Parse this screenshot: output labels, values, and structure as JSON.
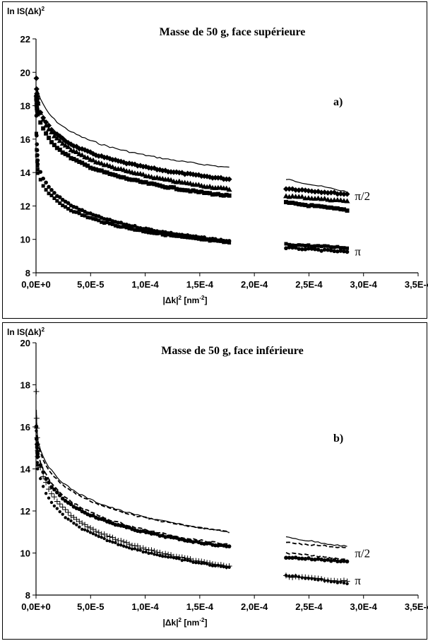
{
  "chart_data": [
    {
      "type": "scatter",
      "title": "Masse de 50 g, face supérieure",
      "panel_label": "a)",
      "ylabel_main": "ln IS(Δk)",
      "ylabel_sup": "2",
      "xlabel_main": "|Δk|",
      "xlabel_sup": "2",
      "xlabel_unit": " [nm",
      "xlabel_unit_sup": "-2",
      "xlabel_close": "]",
      "xlim": [
        0,
        0.00035
      ],
      "ylim": [
        8,
        22
      ],
      "x_ticks": [
        0,
        5e-05,
        0.0001,
        0.00015,
        0.0002,
        0.00025,
        0.0003,
        0.00035
      ],
      "x_tick_labels": [
        "0,0E+0",
        "5,0E-5",
        "1,0E-4",
        "1,5E-4",
        "2,0E-4",
        "2,5E-4",
        "3,0E-4",
        "3,5E-4"
      ],
      "y_ticks": [
        8,
        10,
        12,
        14,
        16,
        18,
        20,
        22
      ],
      "y_tick_labels": [
        "8",
        "10",
        "12",
        "14",
        "16",
        "18",
        "20",
        "22"
      ],
      "annotations": [
        {
          "text": "π/2",
          "x": 0.000292,
          "y": 12.6
        },
        {
          "text": "π",
          "x": 0.000292,
          "y": 9.3
        }
      ],
      "series": [
        {
          "marker": "line",
          "seg1": {
            "x0": 1.5e-06,
            "y0": 18.9,
            "x1": 0.000177,
            "y1": 14.3
          },
          "seg2": {
            "x0": 0.000229,
            "y0": 13.6,
            "x1": 0.000285,
            "y1": 12.85
          },
          "spike": 0
        },
        {
          "marker": "diamond",
          "seg1": {
            "x0": 1.5e-06,
            "y0": 18.1,
            "x1": 0.000177,
            "y1": 13.6
          },
          "seg2": {
            "x0": 0.000229,
            "y0": 13.05,
            "x1": 0.000285,
            "y1": 12.7
          },
          "spike": 19.6
        },
        {
          "marker": "triangle",
          "seg1": {
            "x0": 1.5e-06,
            "y0": 18.1,
            "x1": 0.000177,
            "y1": 13.0
          },
          "seg2": {
            "x0": 0.000229,
            "y0": 12.6,
            "x1": 0.000285,
            "y1": 12.3
          },
          "spike": 18.7
        },
        {
          "marker": "square",
          "seg1": {
            "x0": 1.5e-06,
            "y0": 17.5,
            "x1": 0.000177,
            "y1": 12.6
          },
          "seg2": {
            "x0": 0.000229,
            "y0": 12.2,
            "x1": 0.000285,
            "y1": 11.75
          },
          "spike": 18.4
        },
        {
          "marker": "dot",
          "seg1": {
            "x0": 1.5e-06,
            "y0": 14.5,
            "x1": 0.000177,
            "y1": 9.9
          },
          "seg2": {
            "x0": 0.000229,
            "y0": 9.5,
            "x1": 0.000285,
            "y1": 9.25
          },
          "spike": 17.4
        },
        {
          "marker": "square-small",
          "seg1": {
            "x0": 1.5e-06,
            "y0": 14.0,
            "x1": 0.000177,
            "y1": 9.8
          },
          "seg2": {
            "x0": 0.000229,
            "y0": 9.7,
            "x1": 0.000285,
            "y1": 9.5
          },
          "spike": 16.3
        }
      ]
    },
    {
      "type": "scatter",
      "title": "Masse de 50 g, face inférieure",
      "panel_label": "b)",
      "ylabel_main": "ln IS(Δk)",
      "ylabel_sup": "2",
      "xlabel_main": "|Δk|",
      "xlabel_sup": "2",
      "xlabel_unit": " [nm",
      "xlabel_unit_sup": "-2",
      "xlabel_close": "]",
      "xlim": [
        0,
        0.00035
      ],
      "ylim": [
        8,
        20
      ],
      "x_ticks": [
        0,
        5e-05,
        0.0001,
        0.00015,
        0.0002,
        0.00025,
        0.0003,
        0.00035
      ],
      "x_tick_labels": [
        "0,0E+0",
        "5,0E-5",
        "1,0E-4",
        "1,5E-4",
        "2,0E-4",
        "2,5E-4",
        "3,0E-4",
        "3,5E-4"
      ],
      "y_ticks": [
        8,
        10,
        12,
        14,
        16,
        18,
        20
      ],
      "y_tick_labels": [
        "8",
        "10",
        "12",
        "14",
        "16",
        "18",
        "20"
      ],
      "annotations": [
        {
          "text": "π/2",
          "x": 0.000292,
          "y": 10.0
        },
        {
          "text": "π",
          "x": 0.000292,
          "y": 8.7
        }
      ],
      "series": [
        {
          "marker": "line",
          "seg1": {
            "x0": 1.5e-06,
            "y0": 15.4,
            "x1": 0.000177,
            "y1": 11.0
          },
          "seg2": {
            "x0": 0.000229,
            "y0": 10.75,
            "x1": 0.000285,
            "y1": 10.3
          },
          "spike": 16.8
        },
        {
          "marker": "dash",
          "seg1": {
            "x0": 1.5e-06,
            "y0": 15.2,
            "x1": 0.000177,
            "y1": 11.0
          },
          "seg2": {
            "x0": 0.000229,
            "y0": 10.5,
            "x1": 0.000285,
            "y1": 10.25
          },
          "spike": 16.5
        },
        {
          "marker": "dash",
          "seg1": {
            "x0": 1.5e-06,
            "y0": 14.8,
            "x1": 0.000177,
            "y1": 10.4
          },
          "seg2": {
            "x0": 0.000229,
            "y0": 10.0,
            "x1": 0.000285,
            "y1": 9.7
          },
          "spike": 16.2
        },
        {
          "marker": "dot",
          "seg1": {
            "x0": 1.5e-06,
            "y0": 14.6,
            "x1": 0.000177,
            "y1": 10.3
          },
          "seg2": {
            "x0": 0.000229,
            "y0": 9.8,
            "x1": 0.000285,
            "y1": 9.6
          },
          "spike": 16.0
        },
        {
          "marker": "dot-small",
          "seg1": {
            "x0": 1.5e-06,
            "y0": 14.0,
            "x1": 0.000177,
            "y1": 9.3
          },
          "seg2": {
            "x0": 0.000229,
            "y0": 8.95,
            "x1": 0.000285,
            "y1": 8.55
          },
          "spike": 15.8
        },
        {
          "marker": "plus",
          "seg1": {
            "x0": 1.5e-06,
            "y0": 14.6,
            "x1": 0.000177,
            "y1": 9.35
          },
          "seg2": {
            "x0": 0.000229,
            "y0": 8.9,
            "x1": 0.000285,
            "y1": 8.65
          },
          "spike": 17.7
        }
      ]
    }
  ]
}
